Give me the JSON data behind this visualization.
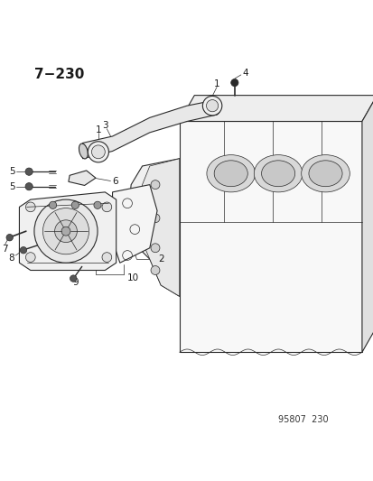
{
  "title": "7−230",
  "footer": "95807  230",
  "bg_color": "#ffffff",
  "line_color": "#2a2a2a",
  "label_color": "#1a1a1a",
  "title_fontsize": 11,
  "label_fontsize": 7.5,
  "footer_fontsize": 7
}
